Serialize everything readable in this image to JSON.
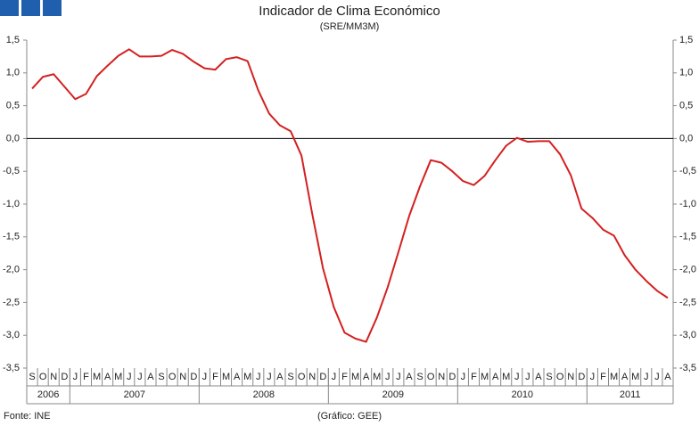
{
  "chart_data": {
    "type": "line",
    "title": "Indicador de Clima Económico",
    "subtitle": "(SRE/MM3M)",
    "source": "Fonte: INE",
    "credit": "(Gráfico: GEE)",
    "categories": [
      "S",
      "O",
      "N",
      "D",
      "J",
      "F",
      "M",
      "A",
      "M",
      "J",
      "J",
      "A",
      "S",
      "O",
      "N",
      "D",
      "J",
      "F",
      "M",
      "A",
      "M",
      "J",
      "J",
      "A",
      "S",
      "O",
      "N",
      "D",
      "J",
      "F",
      "M",
      "A",
      "M",
      "J",
      "J",
      "A",
      "S",
      "O",
      "N",
      "D",
      "J",
      "F",
      "M",
      "A",
      "M",
      "J",
      "J",
      "A",
      "S",
      "O",
      "N",
      "D",
      "J",
      "F",
      "M",
      "A",
      "M",
      "J",
      "J",
      "A"
    ],
    "year_labels": [
      "2006",
      "2007",
      "2008",
      "2009",
      "2010",
      "2011"
    ],
    "series": [
      {
        "name": "Indicador de Clima Económico",
        "color": "#d42020",
        "values": [
          0.76,
          0.94,
          0.98,
          0.79,
          0.6,
          0.68,
          0.95,
          1.11,
          1.26,
          1.36,
          1.25,
          1.25,
          1.26,
          1.35,
          1.29,
          1.17,
          1.07,
          1.05,
          1.21,
          1.24,
          1.18,
          0.73,
          0.38,
          0.2,
          0.11,
          -0.26,
          -1.15,
          -1.98,
          -2.57,
          -2.96,
          -3.05,
          -3.1,
          -2.73,
          -2.27,
          -1.73,
          -1.18,
          -0.73,
          -0.33,
          -0.37,
          -0.5,
          -0.65,
          -0.71,
          -0.57,
          -0.33,
          -0.11,
          0.01,
          -0.05,
          -0.04,
          -0.04,
          -0.24,
          -0.56,
          -1.07,
          -1.21,
          -1.39,
          -1.48,
          -1.78,
          -2.0,
          -2.17,
          -2.32,
          -2.43
        ]
      }
    ],
    "ylim": [
      -3.5,
      1.5
    ],
    "yticks": [
      {
        "value": 1.5,
        "label": "1,5"
      },
      {
        "value": 1,
        "label": "1,0"
      },
      {
        "value": 0.5,
        "label": "0,5"
      },
      {
        "value": 0,
        "label": "0,0"
      },
      {
        "value": -0.5,
        "label": "-0,5"
      },
      {
        "value": -1,
        "label": "-1,0"
      },
      {
        "value": -1.5,
        "label": "-1,5"
      },
      {
        "value": -2,
        "label": "-2,0"
      },
      {
        "value": -2.5,
        "label": "-2,5"
      },
      {
        "value": -3,
        "label": "-3,0"
      },
      {
        "value": -3.5,
        "label": "-3,5"
      }
    ]
  }
}
